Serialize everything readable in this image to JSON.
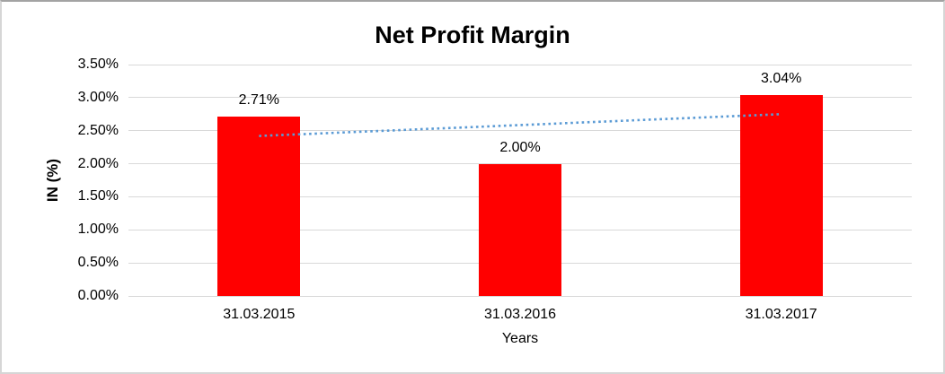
{
  "chart": {
    "title": "Net Profit Margin",
    "y_axis_title": "IN (%)",
    "x_axis_title": "Years"
  },
  "chart_data": {
    "type": "bar",
    "title": "Net Profit Margin",
    "xlabel": "Years",
    "ylabel": "IN (%)",
    "categories": [
      "31.03.2015",
      "31.03.2016",
      "31.03.2017"
    ],
    "values": [
      2.71,
      2.0,
      3.04
    ],
    "data_labels": [
      "2.71%",
      "2.00%",
      "3.04%"
    ],
    "ylim": [
      0,
      3.5
    ],
    "ytick_step": 0.5,
    "ytick_labels": [
      "0.00%",
      "0.50%",
      "1.00%",
      "1.50%",
      "2.00%",
      "2.50%",
      "3.00%",
      "3.50%"
    ],
    "grid": true,
    "legend": "none",
    "bar_color": "#ff0000",
    "gridline_color": "#d9d9d9",
    "text_color": "#000000",
    "trendline": {
      "type": "linear",
      "style": "dotted",
      "color": "#5b9bd5",
      "start_value": 2.42,
      "end_value": 2.75
    }
  }
}
